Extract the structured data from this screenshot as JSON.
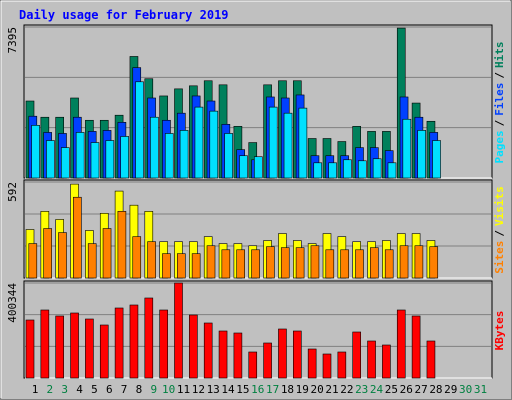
{
  "chart_data": [
    {
      "type": "bar",
      "title": "Daily usage for February 2019",
      "ylim": [
        0,
        7395
      ],
      "yticks": [
        {
          "value": 2465,
          "label": null
        },
        {
          "value": 4930,
          "label": null
        },
        7395
      ],
      "legend_separator": "/",
      "series": [
        {
          "name": "Pages",
          "color": "#00e0ff",
          "values": [
            2579,
            1835,
            1488,
            2232,
            1736,
            1835,
            2034,
            4712,
            2976,
            2182,
            2331,
            3472,
            3274,
            2182,
            1091,
            1042,
            3472,
            3174,
            3422,
            744,
            744,
            893,
            843,
            942,
            744,
            2877,
            2331,
            1835,
            null,
            null,
            null
          ]
        },
        {
          "name": "Files",
          "color": "#0040ff",
          "values": [
            3026,
            2232,
            2182,
            2976,
            2282,
            2331,
            2728,
            5406,
            3918,
            2827,
            3174,
            4018,
            3770,
            2629,
            1389,
            893,
            3968,
            3918,
            4067,
            1091,
            1091,
            1091,
            1488,
            1488,
            1339,
            3968,
            2976,
            2232,
            null,
            null,
            null
          ]
        },
        {
          "name": "Hits",
          "color": "#00805c",
          "values": [
            3770,
            2976,
            2976,
            3918,
            2827,
            2827,
            3075,
            5952,
            4861,
            4018,
            4365,
            4514,
            4762,
            4563,
            2530,
            1736,
            4563,
            4762,
            4762,
            1934,
            1934,
            1786,
            2530,
            2282,
            2282,
            7341,
            3670,
            2778,
            null,
            null,
            null
          ]
        }
      ]
    },
    {
      "type": "bar",
      "ylim": [
        0,
        592
      ],
      "yticks": [
        {
          "value": 197,
          "label": null
        },
        {
          "value": 395,
          "label": null
        },
        592
      ],
      "legend_separator": "/",
      "series": [
        {
          "name": "Sites",
          "color": "#ff8000",
          "values": [
            212,
            305,
            280,
            498,
            212,
            305,
            411,
            255,
            224,
            150,
            150,
            150,
            199,
            174,
            174,
            174,
            193,
            187,
            187,
            199,
            174,
            174,
            174,
            187,
            174,
            199,
            199,
            193,
            null,
            null,
            null
          ]
        },
        {
          "name": "Visits",
          "color": "#ffff00",
          "values": [
            299,
            411,
            361,
            579,
            293,
            399,
            536,
            449,
            411,
            224,
            224,
            224,
            255,
            212,
            212,
            199,
            231,
            274,
            231,
            212,
            274,
            255,
            224,
            224,
            231,
            274,
            274,
            231,
            null,
            null,
            null
          ]
        }
      ]
    },
    {
      "type": "bar",
      "ylim": [
        0,
        400344
      ],
      "yticks": [
        {
          "value": 133448,
          "label": null
        },
        {
          "value": 266896,
          "label": null
        },
        400344
      ],
      "series": [
        {
          "name": "KBytes",
          "color": "#ff0000",
          "values": [
            244412,
            286552,
            261268,
            273910,
            248626,
            223342,
            294980,
            307622,
            337120,
            286552,
            400344,
            265482,
            231770,
            198058,
            189630,
            109564,
            147490,
            206486,
            198058,
            122206,
            101136,
            109564,
            193844,
            155918,
            139062,
            286552,
            261268,
            155918,
            null,
            null,
            null
          ]
        }
      ],
      "categories": [
        "1",
        "2",
        "3",
        "4",
        "5",
        "6",
        "7",
        "8",
        "9",
        "10",
        "11",
        "12",
        "13",
        "14",
        "15",
        "16",
        "17",
        "18",
        "19",
        "20",
        "21",
        "22",
        "23",
        "24",
        "25",
        "26",
        "27",
        "28",
        "29",
        "30",
        "31"
      ],
      "category_colors": [
        "#000000",
        "#008040",
        "#008040",
        "#000000",
        "#000000",
        "#000000",
        "#000000",
        "#000000",
        "#008040",
        "#008040",
        "#000000",
        "#000000",
        "#000000",
        "#000000",
        "#000000",
        "#008040",
        "#008040",
        "#000000",
        "#000000",
        "#000000",
        "#000000",
        "#000000",
        "#008040",
        "#008040",
        "#000000",
        "#000000",
        "#000000",
        "#000000",
        "#000000",
        "#008040",
        "#008040"
      ]
    }
  ]
}
